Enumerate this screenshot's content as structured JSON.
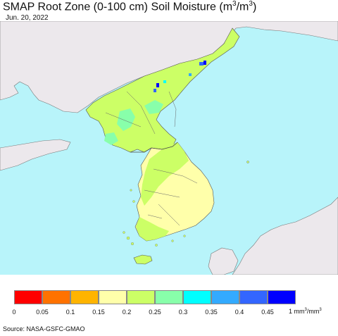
{
  "header": {
    "title_main": "SMAP Root Zone (0-100 cm) Soil Moisture (m",
    "title_sup1": "3",
    "title_slash": "/m",
    "title_sup2": "3",
    "title_end": ")",
    "date": "Jun. 20, 2022"
  },
  "map": {
    "colors": {
      "ocean": "#b8f4fa",
      "land_no_data": "#ece8ec",
      "border": "#555555"
    }
  },
  "legend": {
    "colors": [
      "#ff0000",
      "#ff7200",
      "#ffb400",
      "#ffffaa",
      "#ccff66",
      "#88ffaa",
      "#00ffff",
      "#33aaff",
      "#3366ff",
      "#0000ff"
    ],
    "ticks": [
      "0",
      "0.05",
      "0.1",
      "0.15",
      "0.2",
      "0.25",
      "0.3",
      "0.35",
      "0.4",
      "0.45"
    ],
    "unit_main": "1 mm",
    "unit_sup1": "3",
    "unit_slash": "/mm",
    "unit_sup2": "3"
  },
  "footer": {
    "source": "Source: NASA-GSFC-GMAO"
  }
}
